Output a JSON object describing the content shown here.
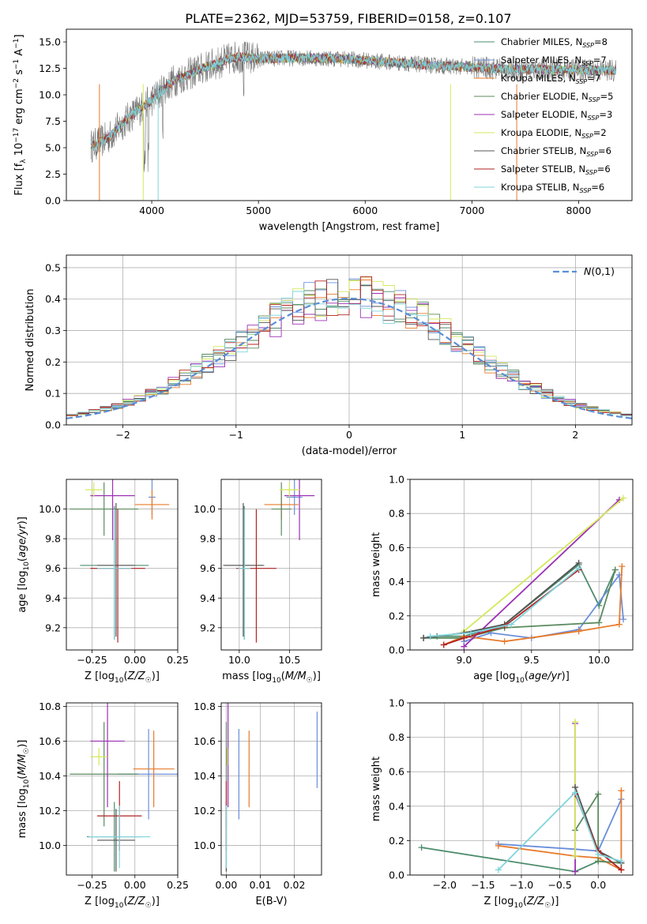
{
  "figure_title": "PLATE=2362, MJD=53759, FIBERID=0158, z=0.107",
  "models": [
    {
      "label": "Chabrier MILES, N_SSP=8",
      "short": "Chabrier MILES",
      "nssp": "8",
      "color": "#4c8c6c"
    },
    {
      "label": "Salpeter MILES, N_SSP=7",
      "short": "Salpeter MILES",
      "nssp": "7",
      "color": "#6a8fdc"
    },
    {
      "label": "Kroupa MILES, N_SSP=7",
      "short": "Kroupa MILES",
      "nssp": "7",
      "color": "#e87a2a"
    },
    {
      "label": "Chabrier ELODIE, N_SSP=5",
      "short": "Chabrier ELODIE",
      "nssp": "5",
      "color": "#5a8a5e"
    },
    {
      "label": "Salpeter ELODIE, N_SSP=3",
      "short": "Salpeter ELODIE",
      "nssp": "3",
      "color": "#9b30b5"
    },
    {
      "label": "Kroupa ELODIE, N_SSP=2",
      "short": "Kroupa ELODIE",
      "nssp": "2",
      "color": "#d4e85a"
    },
    {
      "label": "Chabrier STELIB, N_SSP=6",
      "short": "Chabrier STELIB",
      "nssp": "6",
      "color": "#555555"
    },
    {
      "label": "Salpeter STELIB, N_SSP=6",
      "short": "Salpeter STELIB",
      "nssp": "6",
      "color": "#b22222"
    },
    {
      "label": "Kroupa STELIB, N_SSP=6",
      "short": "Kroupa STELIB",
      "nssp": "6",
      "color": "#7fd4dc"
    }
  ],
  "chart_data": [
    {
      "id": "spectrum",
      "type": "line",
      "xlabel": "wavelength [Angstrom, rest frame]",
      "ylabel": "Flux [f_λ 10^-17 erg cm^-2 s^-1 A^-1]",
      "xlim": [
        3200,
        8500
      ],
      "ylim": [
        0,
        16.2
      ],
      "xticks": [
        4000,
        5000,
        6000,
        7000,
        8000
      ],
      "yticks": [
        0.0,
        2.5,
        5.0,
        7.5,
        10.0,
        12.5,
        15.0
      ],
      "grid": false,
      "legend": "upper right",
      "continuum_anchor_points": {
        "x": [
          3450,
          3600,
          3800,
          4000,
          4200,
          4500,
          4800,
          5000,
          5400,
          5800,
          6200,
          6600,
          7000,
          7400,
          7800,
          8200,
          8350
        ],
        "y": [
          5.2,
          6.0,
          8.0,
          9.5,
          11.3,
          12.6,
          13.6,
          13.4,
          13.5,
          13.4,
          13.1,
          12.8,
          12.6,
          12.4,
          12.4,
          12.3,
          12.3
        ]
      }
    },
    {
      "id": "residuals",
      "type": "line",
      "xlabel": "(data-model)/error",
      "ylabel": "Normed distribution",
      "xlim": [
        -2.5,
        2.5
      ],
      "ylim": [
        0,
        0.54
      ],
      "xticks": [
        -2,
        -1,
        0,
        1,
        2
      ],
      "yticks": [
        0.0,
        0.1,
        0.2,
        0.3,
        0.4,
        0.5
      ],
      "grid": true,
      "legend": "upper right",
      "gaussian_label": "N(0,1)",
      "gaussian_color": "#5b8fd6",
      "gaussian": {
        "mean": 0,
        "sigma": 1
      }
    },
    {
      "id": "age_vs_Z",
      "type": "scatter",
      "xlabel": "Z [log10(Z/Z☉)]",
      "ylabel": "age [log10(age/yr)]",
      "xlim": [
        -0.4,
        0.25
      ],
      "ylim": [
        9.05,
        10.2
      ],
      "xticks": [
        -0.25,
        0.0,
        0.25
      ],
      "yticks": [
        9.2,
        9.4,
        9.6,
        9.8,
        10.0
      ],
      "grid": true,
      "points": [
        {
          "model": 0,
          "x": -0.12,
          "y": 9.62,
          "xerr": 0.2,
          "yerr": [
            0.5,
            0.4
          ]
        },
        {
          "model": 1,
          "x": 0.1,
          "y": 10.08,
          "xerr": 0.02,
          "yerr": 0.12
        },
        {
          "model": 2,
          "x": 0.1,
          "y": 10.03,
          "xerr": 0.1,
          "yerr": 0.1
        },
        {
          "model": 3,
          "x": -0.18,
          "y": 10.0,
          "xerr": 0.2,
          "yerr": 0.18
        },
        {
          "model": 4,
          "x": -0.13,
          "y": 10.09,
          "xerr": 0.13,
          "yerr": 0.3
        },
        {
          "model": 5,
          "x": -0.24,
          "y": 10.13,
          "xerr": 0.05,
          "yerr": 0.05
        },
        {
          "model": 6,
          "x": -0.11,
          "y": 9.62,
          "xerr": 0.11,
          "yerr": [
            0.48,
            0.42
          ]
        },
        {
          "model": 7,
          "x": -0.1,
          "y": 9.6,
          "xerr": 0.16,
          "yerr": [
            0.5,
            0.4
          ]
        },
        {
          "model": 8,
          "x": -0.12,
          "y": 9.6,
          "xerr": 0.1,
          "yerr": [
            0.48,
            0.4
          ]
        }
      ]
    },
    {
      "id": "age_vs_mass",
      "type": "scatter",
      "xlabel": "mass [log10(M/M☉)]",
      "ylabel": "",
      "xlim": [
        9.82,
        10.82
      ],
      "ylim": [
        9.05,
        10.2
      ],
      "xticks": [
        10.0,
        10.5
      ],
      "yticks": [
        9.2,
        9.4,
        9.6,
        9.8,
        10.0
      ],
      "grid": true,
      "points": [
        {
          "model": 0,
          "x": 10.05,
          "y": 9.62,
          "xerr": 0.2,
          "yerr": [
            0.5,
            0.4
          ]
        },
        {
          "model": 1,
          "x": 10.55,
          "y": 10.08,
          "xerr": 0.08,
          "yerr": 0.12
        },
        {
          "model": 2,
          "x": 10.42,
          "y": 10.03,
          "xerr": 0.17,
          "yerr": 0.1
        },
        {
          "model": 3,
          "x": 10.42,
          "y": 10.0,
          "xerr": 0.1,
          "yerr": 0.18
        },
        {
          "model": 4,
          "x": 10.6,
          "y": 10.09,
          "xerr": 0.15,
          "yerr": 0.3
        },
        {
          "model": 5,
          "x": 10.5,
          "y": 10.13,
          "xerr": 0.1,
          "yerr": 0.05
        },
        {
          "model": 6,
          "x": 10.04,
          "y": 9.62,
          "xerr": 0.2,
          "yerr": [
            0.48,
            0.42
          ]
        },
        {
          "model": 7,
          "x": 10.17,
          "y": 9.6,
          "xerr": 0.2,
          "yerr": [
            0.5,
            0.4
          ]
        },
        {
          "model": 8,
          "x": 10.05,
          "y": 9.6,
          "xerr": 0.06,
          "yerr": [
            0.48,
            0.4
          ]
        }
      ]
    },
    {
      "id": "weight_vs_age",
      "type": "line",
      "xlabel": "age [log10(age/yr)]",
      "ylabel": "mass weight",
      "xlim": [
        8.6,
        10.25
      ],
      "ylim": [
        0,
        1.0
      ],
      "xticks": [
        9.0,
        9.5,
        10.0
      ],
      "yticks": [
        0.0,
        0.2,
        0.4,
        0.6,
        0.8,
        1.0
      ],
      "grid": true,
      "series": [
        {
          "model": 0,
          "x": [
            8.7,
            8.8,
            9.0,
            9.3,
            9.85,
            10.0,
            10.12
          ],
          "y": [
            0.07,
            0.08,
            0.08,
            0.15,
            0.5,
            0.26,
            0.47
          ]
        },
        {
          "model": 1,
          "x": [
            9.0,
            9.2,
            9.5,
            9.85,
            10.15,
            10.18
          ],
          "y": [
            0.05,
            0.1,
            0.07,
            0.12,
            0.44,
            0.18
          ]
        },
        {
          "model": 2,
          "x": [
            8.85,
            9.0,
            9.3,
            9.85,
            10.15,
            10.17
          ],
          "y": [
            0.03,
            0.08,
            0.05,
            0.11,
            0.15,
            0.49
          ]
        },
        {
          "model": 3,
          "x": [
            8.7,
            9.0,
            9.3,
            10.0,
            10.12
          ],
          "y": [
            0.07,
            0.07,
            0.13,
            0.16,
            0.47
          ]
        },
        {
          "model": 4,
          "x": [
            9.0,
            10.15
          ],
          "y": [
            0.02,
            0.88
          ]
        },
        {
          "model": 5,
          "x": [
            9.0,
            10.18
          ],
          "y": [
            0.11,
            0.89
          ]
        },
        {
          "model": 6,
          "x": [
            8.7,
            9.0,
            9.3,
            9.85
          ],
          "y": [
            0.07,
            0.1,
            0.15,
            0.51
          ]
        },
        {
          "model": 7,
          "x": [
            8.85,
            9.0,
            9.3,
            9.85
          ],
          "y": [
            0.03,
            0.07,
            0.14,
            0.47
          ]
        },
        {
          "model": 8,
          "x": [
            8.75,
            9.05,
            9.35,
            9.85
          ],
          "y": [
            0.08,
            0.1,
            0.15,
            0.48
          ]
        }
      ]
    },
    {
      "id": "mass_vs_Z",
      "type": "scatter",
      "xlabel": "Z [log10(Z/Z☉)]",
      "ylabel": "mass [log10(M/M☉)]",
      "xlim": [
        -0.4,
        0.25
      ],
      "ylim": [
        9.83,
        10.82
      ],
      "xticks": [
        -0.25,
        0.0,
        0.25
      ],
      "yticks": [
        10.0,
        10.2,
        10.4,
        10.6,
        10.8
      ],
      "grid": true,
      "points": [
        {
          "model": 0,
          "x": -0.12,
          "y": 10.05,
          "xerr": 0.16,
          "yerr": 0.2
        },
        {
          "model": 1,
          "x": 0.08,
          "y": 10.41,
          "xerr": 0.18,
          "yerr": 0.26
        },
        {
          "model": 2,
          "x": 0.11,
          "y": 10.44,
          "xerr": 0.12,
          "yerr": 0.22
        },
        {
          "model": 3,
          "x": -0.18,
          "y": 10.41,
          "xerr": 0.2,
          "yerr": 0.3
        },
        {
          "model": 4,
          "x": -0.16,
          "y": 10.6,
          "xerr": 0.1,
          "yerr": 0.38
        },
        {
          "model": 5,
          "x": -0.21,
          "y": 10.51,
          "xerr": 0.05,
          "yerr": 0.05
        },
        {
          "model": 6,
          "x": -0.11,
          "y": 10.03,
          "xerr": 0.11,
          "yerr": 0.18
        },
        {
          "model": 7,
          "x": -0.09,
          "y": 10.17,
          "xerr": 0.13,
          "yerr": 0.2
        },
        {
          "model": 8,
          "x": -0.09,
          "y": 10.05,
          "xerr": 0.18,
          "yerr": 0.18
        }
      ]
    },
    {
      "id": "mass_vs_EBV",
      "type": "scatter",
      "xlabel": "E(B-V)",
      "ylabel": "",
      "xlim": [
        -0.0015,
        0.028
      ],
      "ylim": [
        9.83,
        10.82
      ],
      "xticks": [
        0.0,
        0.01,
        0.02
      ],
      "yticks": [
        10.0,
        10.2,
        10.4,
        10.6,
        10.8
      ],
      "grid": true,
      "points": [
        {
          "model": 0,
          "x": 0.0,
          "y": 10.05,
          "xerr": 0,
          "yerr": 0.2
        },
        {
          "model": 1,
          "x": 0.0037,
          "y": 10.41,
          "xerr": 0,
          "yerr": 0.26
        },
        {
          "model": 2,
          "x": 0.0067,
          "y": 10.44,
          "xerr": 0,
          "yerr": 0.22
        },
        {
          "model": 3,
          "x": 0.0,
          "y": 10.41,
          "xerr": 0,
          "yerr": 0.3
        },
        {
          "model": 4,
          "x": 0.0005,
          "y": 10.6,
          "xerr": 0,
          "yerr": 0.38
        },
        {
          "model": 5,
          "x": 0.0003,
          "y": 10.51,
          "xerr": 0,
          "yerr": 0.05
        },
        {
          "model": 6,
          "x": 0.0,
          "y": 10.03,
          "xerr": 0,
          "yerr": 0.18
        },
        {
          "model": 7,
          "x": 0.0,
          "y": 10.17,
          "xerr": 0,
          "yerr": 0.2
        },
        {
          "model": 8,
          "x": 0.0,
          "y": 10.05,
          "xerr": 0,
          "yerr": 0.18
        },
        {
          "model": 1,
          "x": 0.0267,
          "y": 10.55,
          "xerr": 0,
          "yerr": 0.22
        }
      ]
    },
    {
      "id": "weight_vs_Z",
      "type": "line",
      "xlabel": "Z [log10(Z/Z☉)]",
      "ylabel": "mass weight",
      "xlim": [
        -2.45,
        0.45
      ],
      "ylim": [
        0,
        1.0
      ],
      "xticks": [
        -2.0,
        -1.5,
        -1.0,
        -0.5,
        0.0
      ],
      "yticks": [
        0.0,
        0.2,
        0.4,
        0.6,
        0.8,
        1.0
      ],
      "grid": true,
      "series": [
        {
          "model": 0,
          "x": [
            -2.3,
            -0.3,
            0.0,
            0.3
          ],
          "y": [
            0.16,
            0.02,
            0.08,
            0.07
          ]
        },
        {
          "model": 1,
          "x": [
            -1.3,
            -0.3,
            0.0,
            0.3
          ],
          "y": [
            0.18,
            0.15,
            0.14,
            0.44
          ]
        },
        {
          "model": 2,
          "x": [
            -1.3,
            -0.3,
            0.0,
            0.3,
            0.3
          ],
          "y": [
            0.17,
            0.11,
            0.1,
            0.03,
            0.49
          ]
        },
        {
          "model": 3,
          "x": [
            -0.3,
            0.0,
            0.0,
            0.3
          ],
          "y": [
            0.26,
            0.47,
            0.08,
            0.07
          ]
        },
        {
          "model": 4,
          "x": [
            -0.3,
            -0.3
          ],
          "y": [
            0.02,
            0.88
          ]
        },
        {
          "model": 5,
          "x": [
            -0.3,
            -0.3
          ],
          "y": [
            0.11,
            0.89
          ]
        },
        {
          "model": 6,
          "x": [
            -0.3,
            0.0,
            0.3
          ],
          "y": [
            0.51,
            0.14,
            0.07
          ]
        },
        {
          "model": 7,
          "x": [
            -0.3,
            0.0,
            0.3
          ],
          "y": [
            0.47,
            0.14,
            0.03
          ]
        },
        {
          "model": 8,
          "x": [
            -1.3,
            -0.3,
            0.0,
            0.3
          ],
          "y": [
            0.03,
            0.48,
            0.12,
            0.08
          ]
        }
      ]
    }
  ]
}
